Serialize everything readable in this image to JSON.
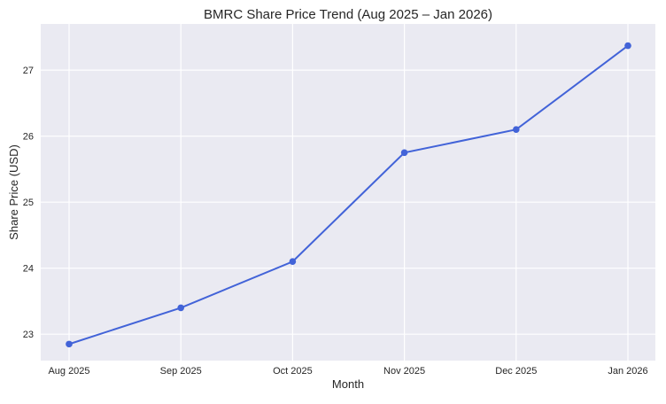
{
  "chart_data": {
    "type": "line",
    "title": "BMRC Share Price Trend (Aug 2025 – Jan 2026)",
    "xlabel": "Month",
    "ylabel": "Share Price (USD)",
    "categories": [
      "Aug 2025",
      "Sep 2025",
      "Oct 2025",
      "Nov 2025",
      "Dec 2025",
      "Jan 2026"
    ],
    "series": [
      {
        "values": [
          22.85,
          23.4,
          24.1,
          25.75,
          26.1,
          27.37
        ]
      }
    ],
    "yticks": [
      23,
      24,
      25,
      26,
      27
    ],
    "ylim": [
      22.6,
      27.7
    ],
    "grid": true,
    "legend": "none",
    "colors": {
      "line": "#4263d8",
      "plot_background": "#eaeaf2",
      "grid": "#ffffff"
    }
  }
}
